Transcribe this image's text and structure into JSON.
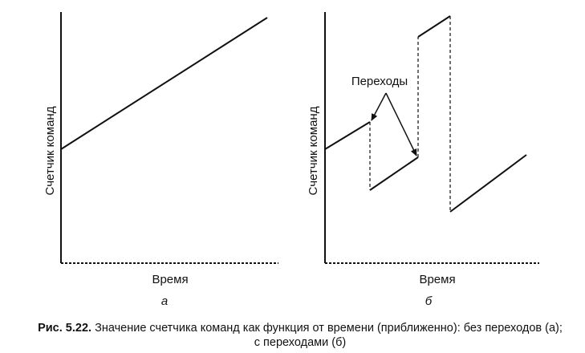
{
  "panels": {
    "a": {
      "ylabel": "Счетчик команд",
      "xlabel": "Время",
      "sublabel": "а"
    },
    "b": {
      "ylabel": "Счетчик команд",
      "xlabel": "Время",
      "sublabel": "б",
      "annotation": "Переходы"
    }
  },
  "caption": {
    "number": "Рис. 5.22.",
    "text": "Значение счетчика команд как функция от времени (приближенно): без переходов (а); с переходами (б)"
  }
}
